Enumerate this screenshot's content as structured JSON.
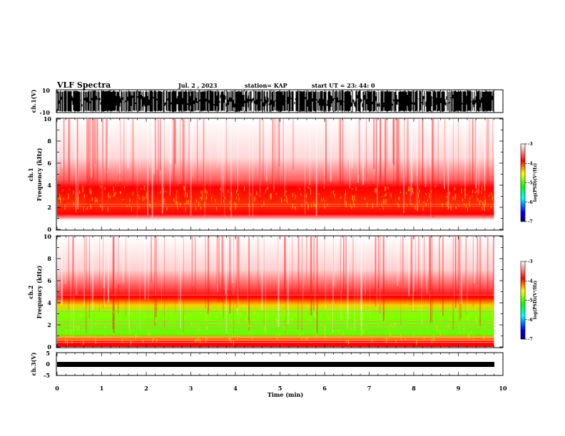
{
  "header": {
    "title": "VLF Spectra",
    "date": "Jul. 2 , 2023",
    "station": "station= KAP",
    "start": "start UT = 23: 44: 0"
  },
  "colors": {
    "spectrogram_high": "#ff0000",
    "spectrogram_mid": "#ffff00",
    "spectrogram_low": "#00ff00",
    "colorbar_stops": [
      "#000080",
      "#0000ff",
      "#00ffff",
      "#00ff00",
      "#ffff00",
      "#ff0000",
      "#ffffff"
    ]
  },
  "chart_data": [
    {
      "type": "area",
      "panel": "ch1-waveform",
      "ylabel": "ch.1(V)",
      "ylim": [
        -10,
        10
      ],
      "yticks": [
        "10",
        "-10"
      ],
      "xlim": [
        0,
        10
      ]
    },
    {
      "type": "heatmap",
      "panel": "ch1-spectrogram",
      "ylabel": "ch.1\nFrequency (kHz)",
      "ylabel_lines": [
        "ch.1",
        "Frequency (kHz)"
      ],
      "ylim": [
        0,
        10
      ],
      "yticks": [
        "10",
        "8",
        "6",
        "4",
        "2",
        "0"
      ],
      "xlim": [
        0,
        9.8
      ],
      "intense_band_khz": [
        2,
        4
      ],
      "colorbar": {
        "label": "log(PSD)(V²/Hz)",
        "ticks": [
          "-3",
          "-4",
          "-5",
          "-6",
          "-7"
        ],
        "range": [
          -7,
          -3
        ]
      }
    },
    {
      "type": "heatmap",
      "panel": "ch2-spectrogram",
      "ylabel": "ch.2\nFrequency (kHz)",
      "ylabel_lines": [
        "ch.2",
        "Frequency (kHz)"
      ],
      "ylim": [
        0,
        10
      ],
      "yticks": [
        "10",
        "8",
        "6",
        "4",
        "2",
        "0"
      ],
      "xlim": [
        0,
        9.8
      ],
      "intense_band_khz": [
        0.5,
        3.5
      ],
      "colorbar": {
        "label": "log(PSD)(V²/Hz)",
        "ticks": [
          "-3",
          "-4",
          "-5",
          "-6",
          "-7"
        ],
        "range": [
          -7,
          -3
        ]
      }
    },
    {
      "type": "line",
      "panel": "ch3-waveform",
      "ylabel": "ch.3(V)",
      "ylim": [
        -5,
        5
      ],
      "yticks": [
        "5",
        "0",
        "-5"
      ],
      "xlim": [
        0,
        10
      ],
      "xlabel": "Time (min)",
      "xticks": [
        "0",
        "1",
        "2",
        "3",
        "4",
        "5",
        "6",
        "7",
        "8",
        "9",
        "10"
      ]
    }
  ]
}
